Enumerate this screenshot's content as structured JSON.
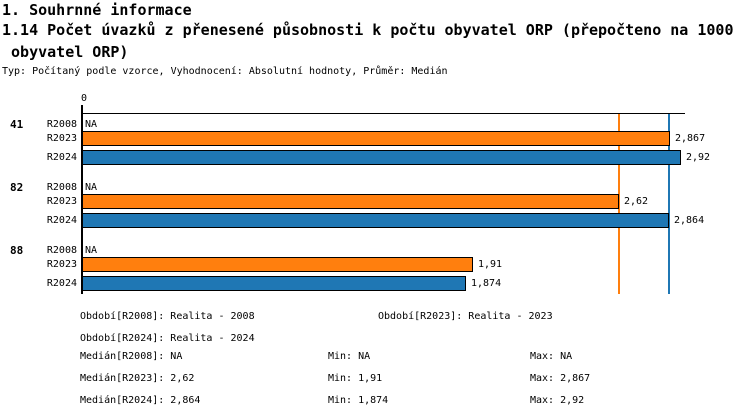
{
  "header": {
    "title": "1. Souhrnné informace",
    "subtitle_line1": "1.14 Počet úvazků z přenesené působnosti k počtu obyvatel ORP (přepočteno na 1000",
    "subtitle_line2": " obyvatel ORP)",
    "meta": "Typ: Počítaný podle vzorce, Vyhodnocení: Absolutní hodnoty, Průměr: Medián"
  },
  "chart_data": {
    "type": "bar",
    "orientation": "horizontal",
    "title": "1.14 Počet úvazků z přenesené působnosti k počtu obyvatel ORP (přepočteno na 1000 obyvatel ORP)",
    "x_axis": {
      "origin_label": "0",
      "min": 0,
      "max": 2.94,
      "grid": false
    },
    "colors": {
      "R2023": "#ff7f0e",
      "R2024": "#1f77b4",
      "bar_border": "#000000",
      "axis": "#000000"
    },
    "median_lines": [
      {
        "name": "Medián[R2023]",
        "value": 2.62,
        "color": "#ff7f0e"
      },
      {
        "name": "Medián[R2024]",
        "value": 2.864,
        "color": "#1f77b4"
      }
    ],
    "groups": [
      {
        "label": "41",
        "rows": [
          {
            "period": "R2008",
            "value": null,
            "display": "NA",
            "color": null
          },
          {
            "period": "R2023",
            "value": 2.867,
            "display": "2,867",
            "color": "#ff7f0e"
          },
          {
            "period": "R2024",
            "value": 2.92,
            "display": "2,92",
            "color": "#1f77b4"
          }
        ]
      },
      {
        "label": "82",
        "rows": [
          {
            "period": "R2008",
            "value": null,
            "display": "NA",
            "color": null
          },
          {
            "period": "R2023",
            "value": 2.62,
            "display": "2,62",
            "color": "#ff7f0e"
          },
          {
            "period": "R2024",
            "value": 2.864,
            "display": "2,864",
            "color": "#1f77b4"
          }
        ]
      },
      {
        "label": "88",
        "rows": [
          {
            "period": "R2008",
            "value": null,
            "display": "NA",
            "color": null
          },
          {
            "period": "R2023",
            "value": 1.91,
            "display": "1,91",
            "color": "#ff7f0e"
          },
          {
            "period": "R2024",
            "value": 1.874,
            "display": "1,874",
            "color": "#1f77b4"
          }
        ]
      }
    ]
  },
  "legend": {
    "periods": [
      {
        "label": "Období[R2008]:",
        "value": "Realita - 2008",
        "row": 0,
        "col": 0
      },
      {
        "label": "Období[R2023]:",
        "value": "Realita - 2023",
        "row": 0,
        "col": 1
      },
      {
        "label": "Období[R2024]:",
        "value": "Realita - 2024",
        "row": 1,
        "col": 0
      }
    ],
    "min_label": "Min:",
    "max_label": "Max:",
    "stats": [
      {
        "label": "Medián[R2008]:",
        "median": "NA",
        "min": "NA",
        "max": "NA"
      },
      {
        "label": "Medián[R2023]:",
        "median": "2,62",
        "min": "1,91",
        "max": "2,867"
      },
      {
        "label": "Medián[R2024]:",
        "median": "2,864",
        "min": "1,874",
        "max": "2,92"
      }
    ]
  }
}
